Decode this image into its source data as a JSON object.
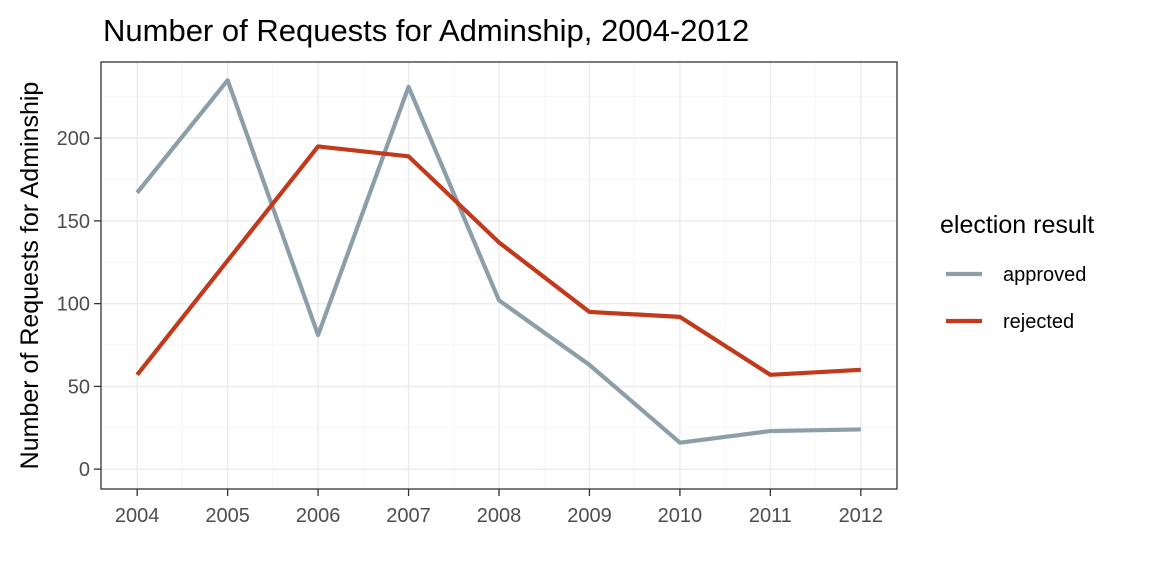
{
  "chart_data": {
    "type": "line",
    "title": "Number of Requests for Adminship, 2004-2012",
    "xlabel": "",
    "ylabel": "Number of Requests for Adminship",
    "x": [
      2004,
      2005,
      2006,
      2007,
      2008,
      2009,
      2010,
      2011,
      2012
    ],
    "x_tick_labels": [
      "2004",
      "2005",
      "2006",
      "2007",
      "2008",
      "2009",
      "2010",
      "2011",
      "2012"
    ],
    "xlim": [
      2003.6,
      2012.4
    ],
    "ylim": [
      -12,
      246
    ],
    "y_ticks": [
      0,
      50,
      100,
      150,
      200
    ],
    "y_tick_labels": [
      "0",
      "50",
      "100",
      "150",
      "200"
    ],
    "grid": true,
    "legend": {
      "title": "election result",
      "placement": "right"
    },
    "series": [
      {
        "name": "approved",
        "color": "#8c9fa8",
        "values": [
          167,
          235,
          81,
          231,
          102,
          63,
          16,
          23,
          24
        ]
      },
      {
        "name": "rejected",
        "color": "#c2391b",
        "values": [
          57,
          126,
          195,
          189,
          137,
          95,
          92,
          57,
          60
        ]
      }
    ]
  }
}
